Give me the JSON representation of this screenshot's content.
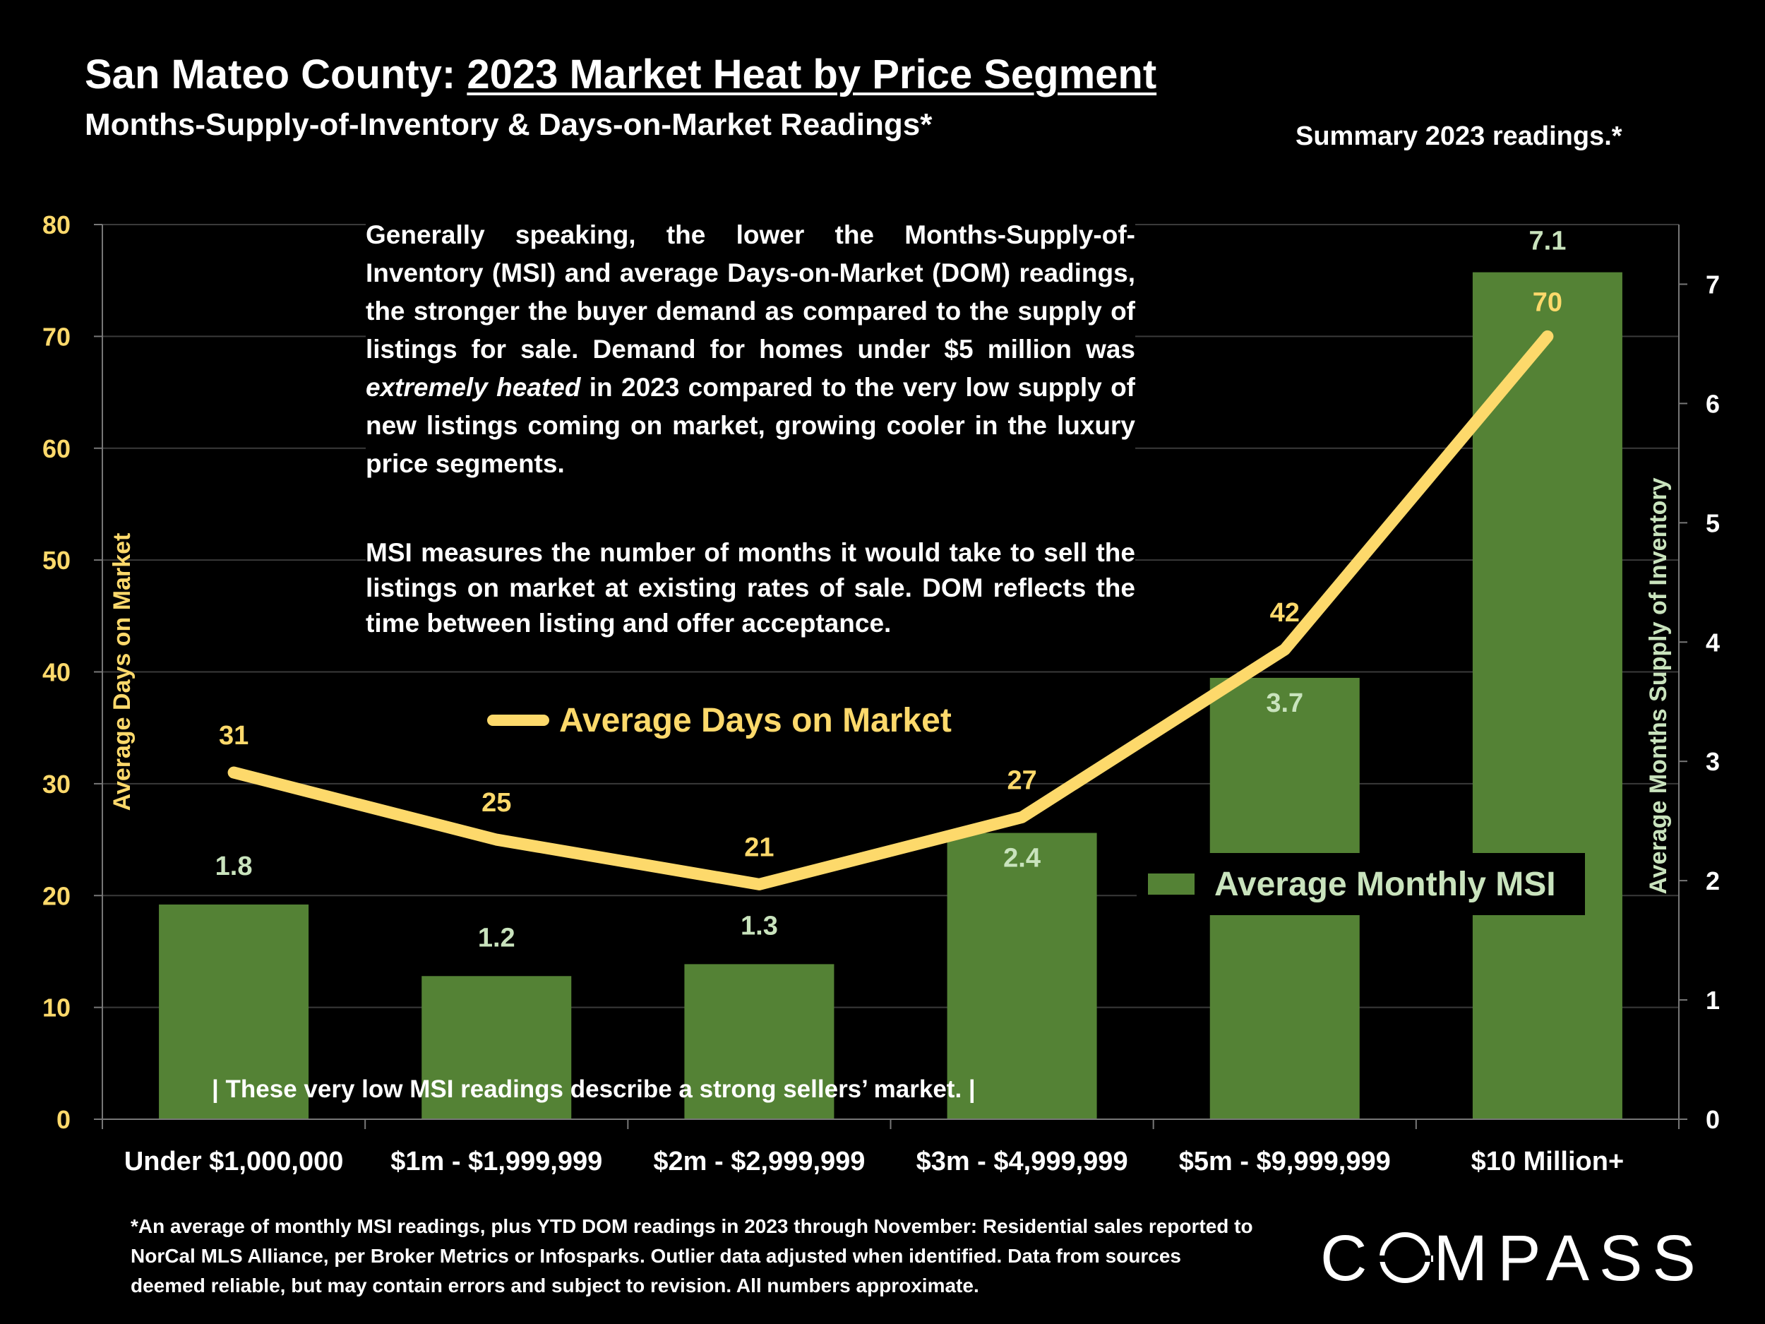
{
  "title": {
    "prefix": "San Mateo County: ",
    "main": "2023 Market Heat by Price Segment"
  },
  "subtitle": "Months-Supply-of-Inventory & Days-on-Market Readings*",
  "summary_label": "Summary 2023 readings.*",
  "paragraph1_a": "Generally speaking, the lower the Months-Supply-of-Inventory (MSI) and average Days-on-Market (DOM) readings, the stronger the buyer demand as compared to the supply of listings for sale. Demand for homes under $5 million was ",
  "paragraph1_em": "extremely heated",
  "paragraph1_b": " in 2023 compared to the very low supply of new listings coming on market, growing cooler in the luxury price segments.",
  "paragraph2": "MSI measures the number of months it would take to sell the listings on market at existing rates of sale. DOM reflects the time between listing and offer acceptance.",
  "bottom_note": "|  These very low MSI readings describe a strong sellers’ market.  |",
  "footnote": "*An average of monthly MSI readings, plus YTD DOM readings in 2023 through November:  Residential sales reported to NorCal MLS Alliance, per Broker Metrics or Infosparks. Outlier data adjusted when identified. Data from sources deemed reliable, but may contain errors and subject to revision. All numbers approximate.",
  "logo": {
    "c": "C",
    "rest": "MPASS",
    "icon": "compass-o-icon"
  },
  "colors": {
    "bar": "#548235",
    "bar_label": "#c9e3bd",
    "line": "#fdd96b",
    "left_axis": "#fdd96b",
    "right_axis": "#c9e3bd",
    "background": "#000000"
  },
  "chart_data": {
    "type": "bar",
    "categories": [
      "Under $1,000,000",
      "$1m - $1,999,999",
      "$2m - $2,999,999",
      "$3m - $4,999,999",
      "$5m - $9,999,999",
      "$10 Million+"
    ],
    "series": [
      {
        "name": "Average Monthly MSI",
        "type": "bar",
        "axis": "right",
        "values": [
          1.8,
          1.2,
          1.3,
          2.4,
          3.7,
          7.1
        ]
      },
      {
        "name": "Average Days on Market",
        "type": "line",
        "axis": "left",
        "values": [
          31,
          25,
          21,
          27,
          42,
          70
        ]
      }
    ],
    "y_left": {
      "label": "Average Days on Market",
      "range": [
        0,
        80
      ],
      "ticks": [
        0,
        10,
        20,
        30,
        40,
        50,
        60,
        70,
        80
      ]
    },
    "y_right": {
      "label": "Average Months Supply of Inventory",
      "range": [
        0,
        7.5
      ],
      "ticks": [
        0,
        1,
        2,
        3,
        4,
        5,
        6,
        7
      ]
    },
    "grid": true,
    "legend": "inside"
  }
}
